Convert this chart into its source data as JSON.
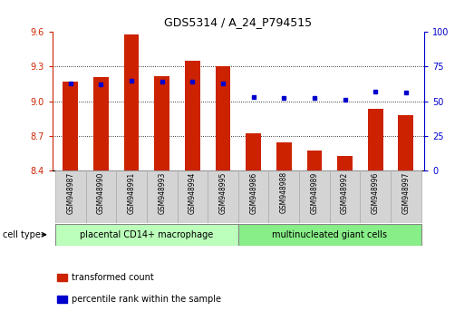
{
  "title": "GDS5314 / A_24_P794515",
  "samples": [
    "GSM948987",
    "GSM948990",
    "GSM948991",
    "GSM948993",
    "GSM948994",
    "GSM948995",
    "GSM948986",
    "GSM948988",
    "GSM948989",
    "GSM948992",
    "GSM948996",
    "GSM948997"
  ],
  "transformed_count": [
    9.17,
    9.21,
    9.58,
    9.22,
    9.35,
    9.3,
    8.72,
    8.64,
    8.57,
    8.52,
    8.93,
    8.88
  ],
  "percentile_rank": [
    63,
    62,
    65,
    64,
    64,
    63,
    53,
    52,
    52,
    51,
    57,
    56
  ],
  "ylim_left": [
    8.4,
    9.6
  ],
  "ylim_right": [
    0,
    100
  ],
  "yticks_left": [
    8.4,
    8.7,
    9.0,
    9.3,
    9.6
  ],
  "yticks_right": [
    0,
    25,
    50,
    75,
    100
  ],
  "bar_color": "#cc2200",
  "dot_color": "#0000cc",
  "bar_width": 0.5,
  "group1_label": "placental CD14+ macrophage",
  "group2_label": "multinucleated giant cells",
  "group1_count": 6,
  "group2_count": 6,
  "group1_color": "#bbffbb",
  "group2_color": "#88ee88",
  "cell_type_label": "cell type",
  "legend_bar_label": "transformed count",
  "legend_dot_label": "percentile rank within the sample",
  "baseline": 8.4,
  "grid_ticks": [
    8.7,
    9.0,
    9.3
  ]
}
